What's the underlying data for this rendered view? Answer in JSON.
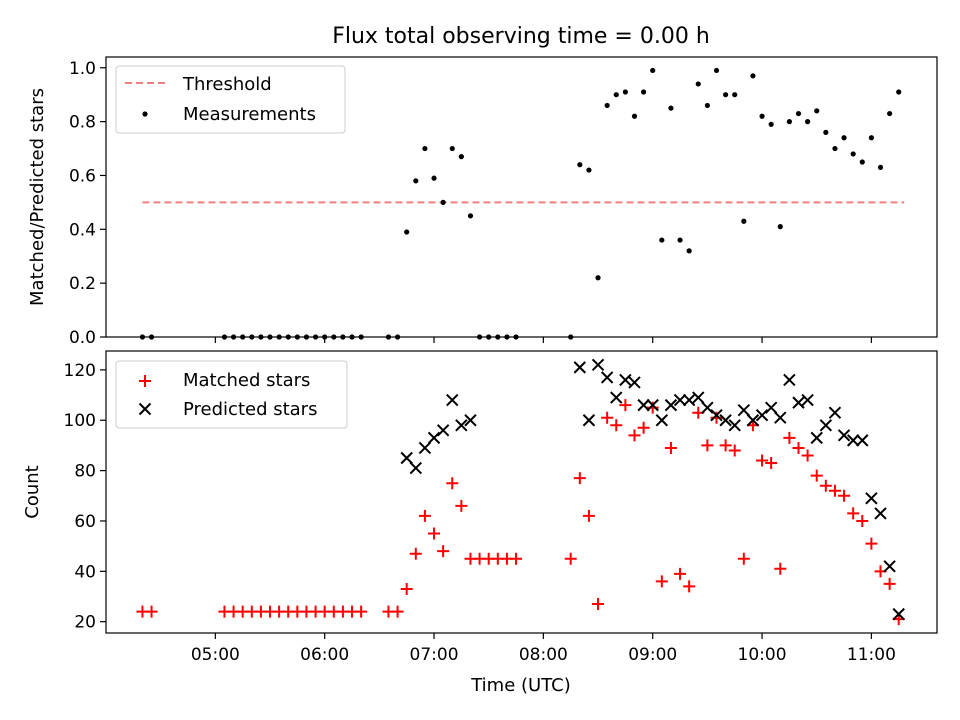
{
  "title": "Flux total observing time = 0.00 h",
  "xlabel": "Time (UTC)",
  "chart_data": [
    {
      "type": "scatter",
      "ylabel": "Matched/Predicted stars",
      "ylim": [
        0,
        1.04
      ],
      "yticks": [
        0.0,
        0.2,
        0.4,
        0.6,
        0.8,
        1.0
      ],
      "ytick_labels": [
        "0.0",
        "0.2",
        "0.4",
        "0.6",
        "0.8",
        "1.0"
      ],
      "xlim": [
        "04:00",
        "11:36"
      ],
      "legend": {
        "position": "top-left",
        "entries": [
          {
            "label": "Threshold",
            "marker": "dashed-line",
            "color": "#f08080"
          },
          {
            "label": "Measurements",
            "marker": "dot",
            "color": "#000000"
          }
        ]
      },
      "threshold": {
        "value": 0.5,
        "x_start": "04:20",
        "x_end": "11:18",
        "color": "#f08080"
      },
      "series": [
        {
          "name": "Measurements",
          "color": "#000000",
          "x": [
            "04:20",
            "04:25",
            "05:05",
            "05:10",
            "05:15",
            "05:20",
            "05:25",
            "05:30",
            "05:35",
            "05:40",
            "05:45",
            "05:50",
            "05:55",
            "06:00",
            "06:05",
            "06:10",
            "06:15",
            "06:20",
            "06:35",
            "06:40",
            "06:45",
            "06:50",
            "06:55",
            "07:00",
            "07:05",
            "07:10",
            "07:15",
            "07:20",
            "07:25",
            "07:30",
            "07:35",
            "07:40",
            "07:45",
            "08:15",
            "08:20",
            "08:25",
            "08:30",
            "08:35",
            "08:40",
            "08:45",
            "08:50",
            "08:55",
            "09:00",
            "09:05",
            "09:10",
            "09:15",
            "09:20",
            "09:25",
            "09:30",
            "09:35",
            "09:40",
            "09:45",
            "09:50",
            "09:55",
            "10:00",
            "10:05",
            "10:10",
            "10:15",
            "10:20",
            "10:25",
            "10:30",
            "10:35",
            "10:40",
            "10:45",
            "10:50",
            "10:55",
            "11:00",
            "11:05",
            "11:10",
            "11:15"
          ],
          "values": [
            0,
            0,
            0,
            0,
            0,
            0,
            0,
            0,
            0,
            0,
            0,
            0,
            0,
            0,
            0,
            0,
            0,
            0,
            0,
            0,
            0.39,
            0.58,
            0.7,
            0.59,
            0.5,
            0.7,
            0.67,
            0.45,
            0,
            0,
            0,
            0,
            0,
            0,
            0.64,
            0.62,
            0.22,
            0.86,
            0.9,
            0.91,
            0.82,
            0.91,
            0.99,
            0.36,
            0.85,
            0.36,
            0.32,
            0.94,
            0.86,
            0.99,
            0.9,
            0.9,
            0.43,
            0.97,
            0.82,
            0.79,
            0.41,
            0.8,
            0.83,
            0.8,
            0.84,
            0.76,
            0.7,
            0.74,
            0.68,
            0.65,
            0.74,
            0.63,
            0.83,
            0.91
          ]
        }
      ]
    },
    {
      "type": "scatter",
      "ylabel": "Count",
      "ylim": [
        15.5,
        127.5
      ],
      "yticks": [
        20,
        40,
        60,
        80,
        100,
        120
      ],
      "ytick_labels": [
        "20",
        "40",
        "60",
        "80",
        "100",
        "120"
      ],
      "xlim": [
        "04:00",
        "11:36"
      ],
      "xticks": [
        "05:00",
        "06:00",
        "07:00",
        "08:00",
        "09:00",
        "10:00",
        "11:00"
      ],
      "legend": {
        "position": "top-left",
        "entries": [
          {
            "label": "Matched stars",
            "marker": "plus",
            "color": "#ff0000"
          },
          {
            "label": "Predicted stars",
            "marker": "x",
            "color": "#000000"
          }
        ]
      },
      "series": [
        {
          "name": "Matched stars",
          "color": "#ff0000",
          "x": [
            "04:20",
            "04:25",
            "05:05",
            "05:10",
            "05:15",
            "05:20",
            "05:25",
            "05:30",
            "05:35",
            "05:40",
            "05:45",
            "05:50",
            "05:55",
            "06:00",
            "06:05",
            "06:10",
            "06:15",
            "06:20",
            "06:35",
            "06:40",
            "06:45",
            "06:50",
            "06:55",
            "07:00",
            "07:05",
            "07:10",
            "07:15",
            "07:20",
            "07:25",
            "07:30",
            "07:35",
            "07:40",
            "07:45",
            "08:15",
            "08:20",
            "08:25",
            "08:30",
            "08:35",
            "08:40",
            "08:45",
            "08:50",
            "08:55",
            "09:00",
            "09:05",
            "09:10",
            "09:15",
            "09:20",
            "09:25",
            "09:30",
            "09:35",
            "09:40",
            "09:45",
            "09:50",
            "09:55",
            "10:00",
            "10:05",
            "10:10",
            "10:15",
            "10:20",
            "10:25",
            "10:30",
            "10:35",
            "10:40",
            "10:45",
            "10:50",
            "10:55",
            "11:00",
            "11:05",
            "11:10",
            "11:15"
          ],
          "values": [
            24,
            24,
            24,
            24,
            24,
            24,
            24,
            24,
            24,
            24,
            24,
            24,
            24,
            24,
            24,
            24,
            24,
            24,
            24,
            24,
            33,
            47,
            62,
            55,
            48,
            75,
            66,
            45,
            45,
            45,
            45,
            45,
            45,
            45,
            77,
            62,
            27,
            101,
            98,
            106,
            94,
            97,
            105,
            36,
            89,
            39,
            34,
            103,
            90,
            101,
            90,
            88,
            45,
            98,
            84,
            83,
            41,
            93,
            89,
            86,
            78,
            74,
            72,
            70,
            63,
            60,
            51,
            40,
            35,
            21
          ]
        },
        {
          "name": "Predicted stars",
          "color": "#000000",
          "x": [
            "06:45",
            "06:50",
            "06:55",
            "07:00",
            "07:05",
            "07:10",
            "07:15",
            "07:20",
            "08:20",
            "08:25",
            "08:30",
            "08:35",
            "08:40",
            "08:45",
            "08:50",
            "08:55",
            "09:00",
            "09:05",
            "09:10",
            "09:15",
            "09:20",
            "09:25",
            "09:30",
            "09:35",
            "09:40",
            "09:45",
            "09:50",
            "09:55",
            "10:00",
            "10:05",
            "10:10",
            "10:15",
            "10:20",
            "10:25",
            "10:30",
            "10:35",
            "10:40",
            "10:45",
            "10:50",
            "10:55",
            "11:00",
            "11:05",
            "11:10",
            "11:15"
          ],
          "values": [
            85,
            81,
            89,
            93,
            96,
            108,
            98,
            100,
            121,
            100,
            122,
            117,
            109,
            116,
            115,
            106,
            106,
            100,
            106,
            108,
            108,
            109,
            105,
            102,
            100,
            98,
            104,
            100,
            102,
            105,
            101,
            116,
            107,
            108,
            93,
            98,
            103,
            94,
            92,
            92,
            69,
            63,
            42,
            23
          ]
        }
      ]
    }
  ]
}
